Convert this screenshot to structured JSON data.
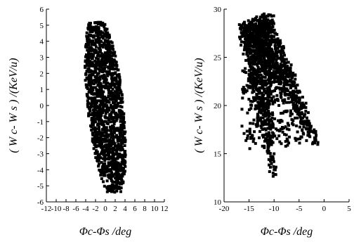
{
  "chart_data": [
    {
      "type": "scatter",
      "title": "",
      "xlabel": "Φc-Φs /deg",
      "ylabel": "( W c- W s ) /(KeV/u)",
      "xlim": [
        -12,
        12
      ],
      "ylim": [
        -6,
        6
      ],
      "xticks": [
        -12,
        -10,
        -8,
        -6,
        -4,
        -2,
        0,
        2,
        4,
        6,
        8,
        10,
        12
      ],
      "yticks": [
        -6,
        -5,
        -4,
        -3,
        -2,
        -1,
        0,
        1,
        2,
        3,
        4,
        5,
        6
      ],
      "grid": false,
      "distribution": {
        "shape": "ellipse",
        "center": [
          0,
          0
        ],
        "semi_axis_major": 6.3,
        "semi_axis_minor": 3.4,
        "tilt_deg": -63,
        "point_count": 1500
      }
    },
    {
      "type": "scatter",
      "title": "",
      "xlabel": "Φc-Φs /deg",
      "ylabel": "( W c- W s ) /(KeV/u)",
      "xlim": [
        -20,
        5
      ],
      "ylim": [
        10,
        30
      ],
      "xticks": [
        -20,
        -15,
        -10,
        -5,
        0,
        5
      ],
      "yticks": [
        10,
        15,
        20,
        25,
        30
      ],
      "grid": false,
      "distribution": {
        "shape": "tilted-band",
        "top_left": [
          -13,
          29
        ],
        "bottom_right": [
          -1,
          16
        ],
        "bottom_tip": [
          -10,
          12
        ],
        "point_count": 1800
      }
    }
  ]
}
